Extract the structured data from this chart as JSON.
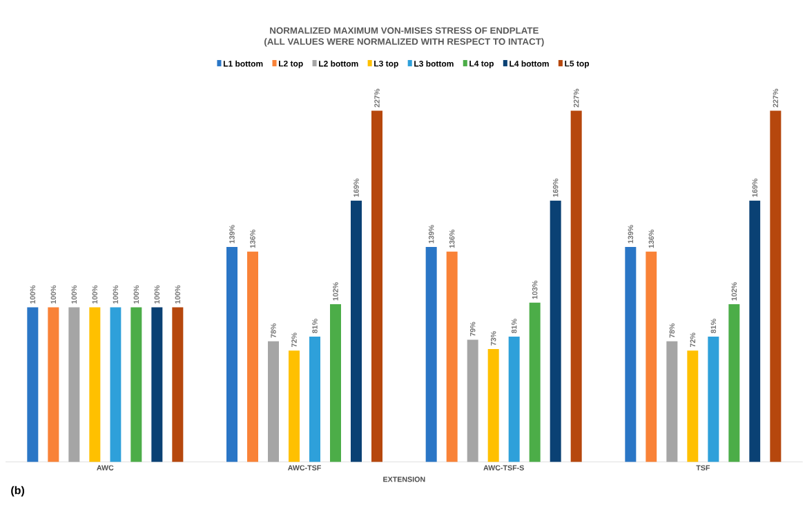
{
  "chart_data": {
    "type": "bar",
    "title": "NORMALIZED MAXIMUM VON-MISES STRESS OF ENDPLATE",
    "subtitle": "(ALL VALUES WERE NORMALIZED WITH RESPECT TO INTACT)",
    "xlabel": "EXTENSION",
    "legend": "top",
    "annotations": [
      "(b)"
    ],
    "categories": [
      "AWC",
      "AWC-TSF",
      "AWC-TSF-S",
      "TSF"
    ],
    "series": [
      {
        "name": "L1 bottom",
        "color": "#2a76c6",
        "values": [
          100,
          139,
          139,
          139
        ],
        "value_labels": [
          "100%",
          "139%",
          "139%",
          "139%"
        ]
      },
      {
        "name": "L2 top",
        "color": "#f98237",
        "values": [
          100,
          136,
          136,
          136
        ],
        "value_labels": [
          "100%",
          "136%",
          "136%",
          "136%"
        ]
      },
      {
        "name": "L2 bottom",
        "color": "#a5a5a5",
        "values": [
          100,
          78,
          79,
          78
        ],
        "value_labels": [
          "100%",
          "78%",
          "79%",
          "78%"
        ]
      },
      {
        "name": "L3 top",
        "color": "#ffc000",
        "values": [
          100,
          72,
          73,
          72
        ],
        "value_labels": [
          "100%",
          "72%",
          "73%",
          "72%"
        ]
      },
      {
        "name": "L3 bottom",
        "color": "#2ea0da",
        "values": [
          100,
          81,
          81,
          81
        ],
        "value_labels": [
          "100%",
          "81%",
          "81%",
          "81%"
        ]
      },
      {
        "name": "L4 top",
        "color": "#4cad48",
        "values": [
          100,
          102,
          103,
          102
        ],
        "value_labels": [
          "100%",
          "102%",
          "103%",
          "102%"
        ]
      },
      {
        "name": "L4 bottom",
        "color": "#0a4174",
        "values": [
          100,
          169,
          169,
          169
        ],
        "value_labels": [
          "100%",
          "169%",
          "169%",
          "169%"
        ]
      },
      {
        "name": "L5 top",
        "color": "#b6470d",
        "values": [
          100,
          227,
          227,
          227
        ],
        "value_labels": [
          "100%",
          "227%",
          "227%",
          "227%"
        ]
      }
    ]
  }
}
